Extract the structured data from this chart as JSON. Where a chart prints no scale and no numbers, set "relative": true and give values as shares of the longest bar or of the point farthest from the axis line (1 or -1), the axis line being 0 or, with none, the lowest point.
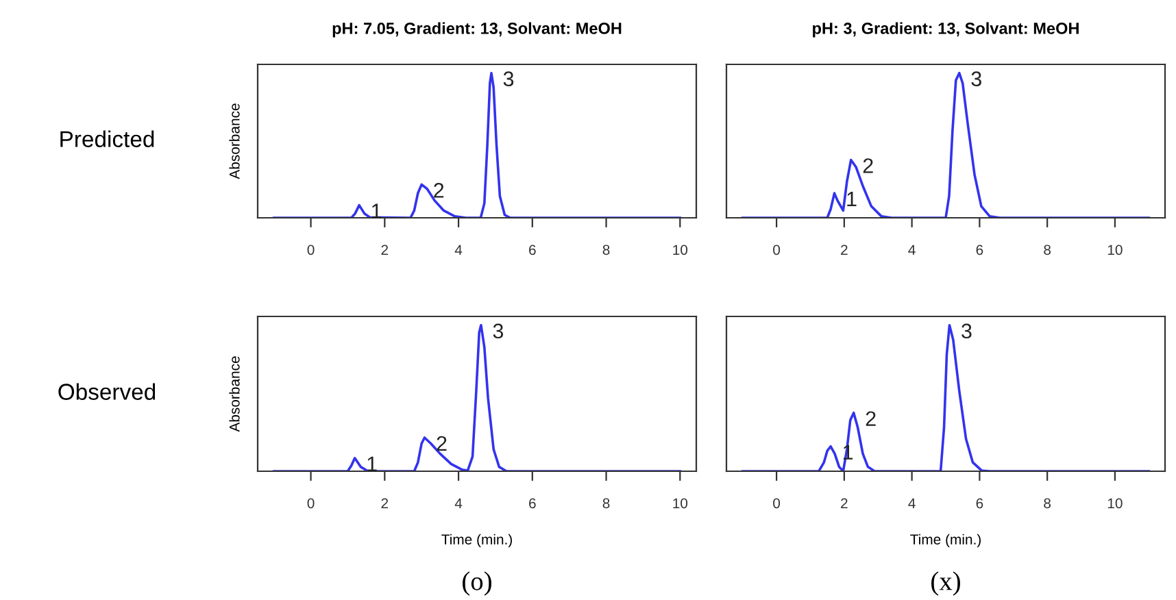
{
  "chart_data": [
    {
      "type": "line",
      "title": "pH: 7.05, Gradient: 13, Solvant: MeOH",
      "ylabel": "Absorbance",
      "relative": true,
      "tick_labels": "x",
      "xlim": [
        -1.44,
        10.44
      ],
      "xticks": [
        0,
        2,
        4,
        6,
        8,
        10
      ],
      "x": [
        -1,
        1.1,
        1.2,
        1.31,
        1.45,
        1.6,
        2.7,
        2.8,
        2.9,
        3.0,
        3.15,
        3.35,
        3.6,
        3.9,
        4.2,
        4.6,
        4.7,
        4.78,
        4.85,
        4.89,
        4.95,
        5.03,
        5.12,
        5.25,
        5.4,
        10
      ],
      "series": [
        {
          "color": "#3333ee",
          "values": [
            0,
            0,
            0.03,
            0.087,
            0.03,
            0.003,
            0,
            0.05,
            0.17,
            0.23,
            0.2,
            0.12,
            0.05,
            0.01,
            0,
            0,
            0.1,
            0.5,
            0.93,
            1.0,
            0.9,
            0.5,
            0.15,
            0.02,
            0,
            0
          ]
        }
      ],
      "annotations": [
        "Predicted",
        {
          "text": "1",
          "x": 1.31,
          "y": 0.087
        },
        {
          "text": "2",
          "x": 3.0,
          "y": 0.23
        },
        {
          "text": "3",
          "x": 4.89,
          "y": 1.0
        }
      ]
    },
    {
      "type": "line",
      "title": "pH: 3, Gradient: 13, Solvant: MeOH",
      "relative": true,
      "tick_labels": "x",
      "xlim": [
        -1.48,
        11.48
      ],
      "xticks": [
        0,
        2,
        4,
        6,
        8,
        10
      ],
      "x": [
        -1,
        1.5,
        1.6,
        1.71,
        1.8,
        1.97,
        2.08,
        2.2,
        2.35,
        2.55,
        2.8,
        3.1,
        3.4,
        5.0,
        5.1,
        5.2,
        5.3,
        5.4,
        5.5,
        5.65,
        5.85,
        6.05,
        6.3,
        6.6,
        11
      ],
      "series": [
        {
          "color": "#3333ee",
          "values": [
            0,
            0,
            0.06,
            0.17,
            0.12,
            0.05,
            0.25,
            0.4,
            0.35,
            0.22,
            0.08,
            0.01,
            0,
            0,
            0.15,
            0.6,
            0.95,
            1.0,
            0.93,
            0.65,
            0.3,
            0.08,
            0.01,
            0,
            0
          ]
        }
      ],
      "annotations": [
        {
          "text": "1",
          "x": 1.71,
          "y": 0.17
        },
        {
          "text": "2",
          "x": 2.2,
          "y": 0.4
        },
        {
          "text": "3",
          "x": 5.4,
          "y": 1.0
        }
      ]
    },
    {
      "type": "line",
      "xlabel": "Time (min.)",
      "ylabel": "Absorbance",
      "relative": true,
      "tick_labels": "x",
      "xlim": [
        -1.44,
        10.44
      ],
      "xticks": [
        0,
        2,
        4,
        6,
        8,
        10
      ],
      "x": [
        -1,
        1.0,
        1.1,
        1.19,
        1.35,
        1.55,
        2.8,
        2.9,
        3.0,
        3.08,
        3.25,
        3.5,
        3.8,
        4.1,
        4.25,
        4.38,
        4.48,
        4.56,
        4.61,
        4.7,
        4.8,
        4.95,
        5.1,
        5.3,
        10
      ],
      "series": [
        {
          "color": "#3333ee",
          "values": [
            0,
            0,
            0.04,
            0.09,
            0.03,
            0,
            0,
            0.06,
            0.19,
            0.23,
            0.19,
            0.12,
            0.05,
            0.01,
            0.005,
            0.1,
            0.55,
            0.95,
            1.0,
            0.85,
            0.5,
            0.15,
            0.03,
            0,
            0
          ]
        }
      ],
      "annotations": [
        "Observed",
        "(o)",
        {
          "text": "1",
          "x": 1.19,
          "y": 0.09
        },
        {
          "text": "2",
          "x": 3.08,
          "y": 0.23
        },
        {
          "text": "3",
          "x": 4.61,
          "y": 1.0
        }
      ]
    },
    {
      "type": "line",
      "xlabel": "Time (min.)",
      "relative": true,
      "tick_labels": "x",
      "xlim": [
        -1.48,
        11.48
      ],
      "xticks": [
        0,
        2,
        4,
        6,
        8,
        10
      ],
      "x": [
        -1,
        1.25,
        1.4,
        1.5,
        1.6,
        1.72,
        1.85,
        1.97,
        2.08,
        2.18,
        2.28,
        2.4,
        2.55,
        2.7,
        2.9,
        4.85,
        4.95,
        5.03,
        5.11,
        5.22,
        5.4,
        5.6,
        5.8,
        6.06,
        6.3,
        11
      ],
      "series": [
        {
          "color": "#3333ee",
          "values": [
            0,
            0,
            0.06,
            0.14,
            0.17,
            0.12,
            0.03,
            0,
            0.15,
            0.35,
            0.4,
            0.3,
            0.12,
            0.03,
            0,
            0,
            0.3,
            0.8,
            1.0,
            0.9,
            0.55,
            0.22,
            0.06,
            0.005,
            0,
            0
          ]
        }
      ],
      "annotations": [
        "(x)",
        {
          "text": "1",
          "x": 1.6,
          "y": 0.17
        },
        {
          "text": "2",
          "x": 2.28,
          "y": 0.4
        },
        {
          "text": "3",
          "x": 5.11,
          "y": 1.0
        }
      ]
    }
  ]
}
